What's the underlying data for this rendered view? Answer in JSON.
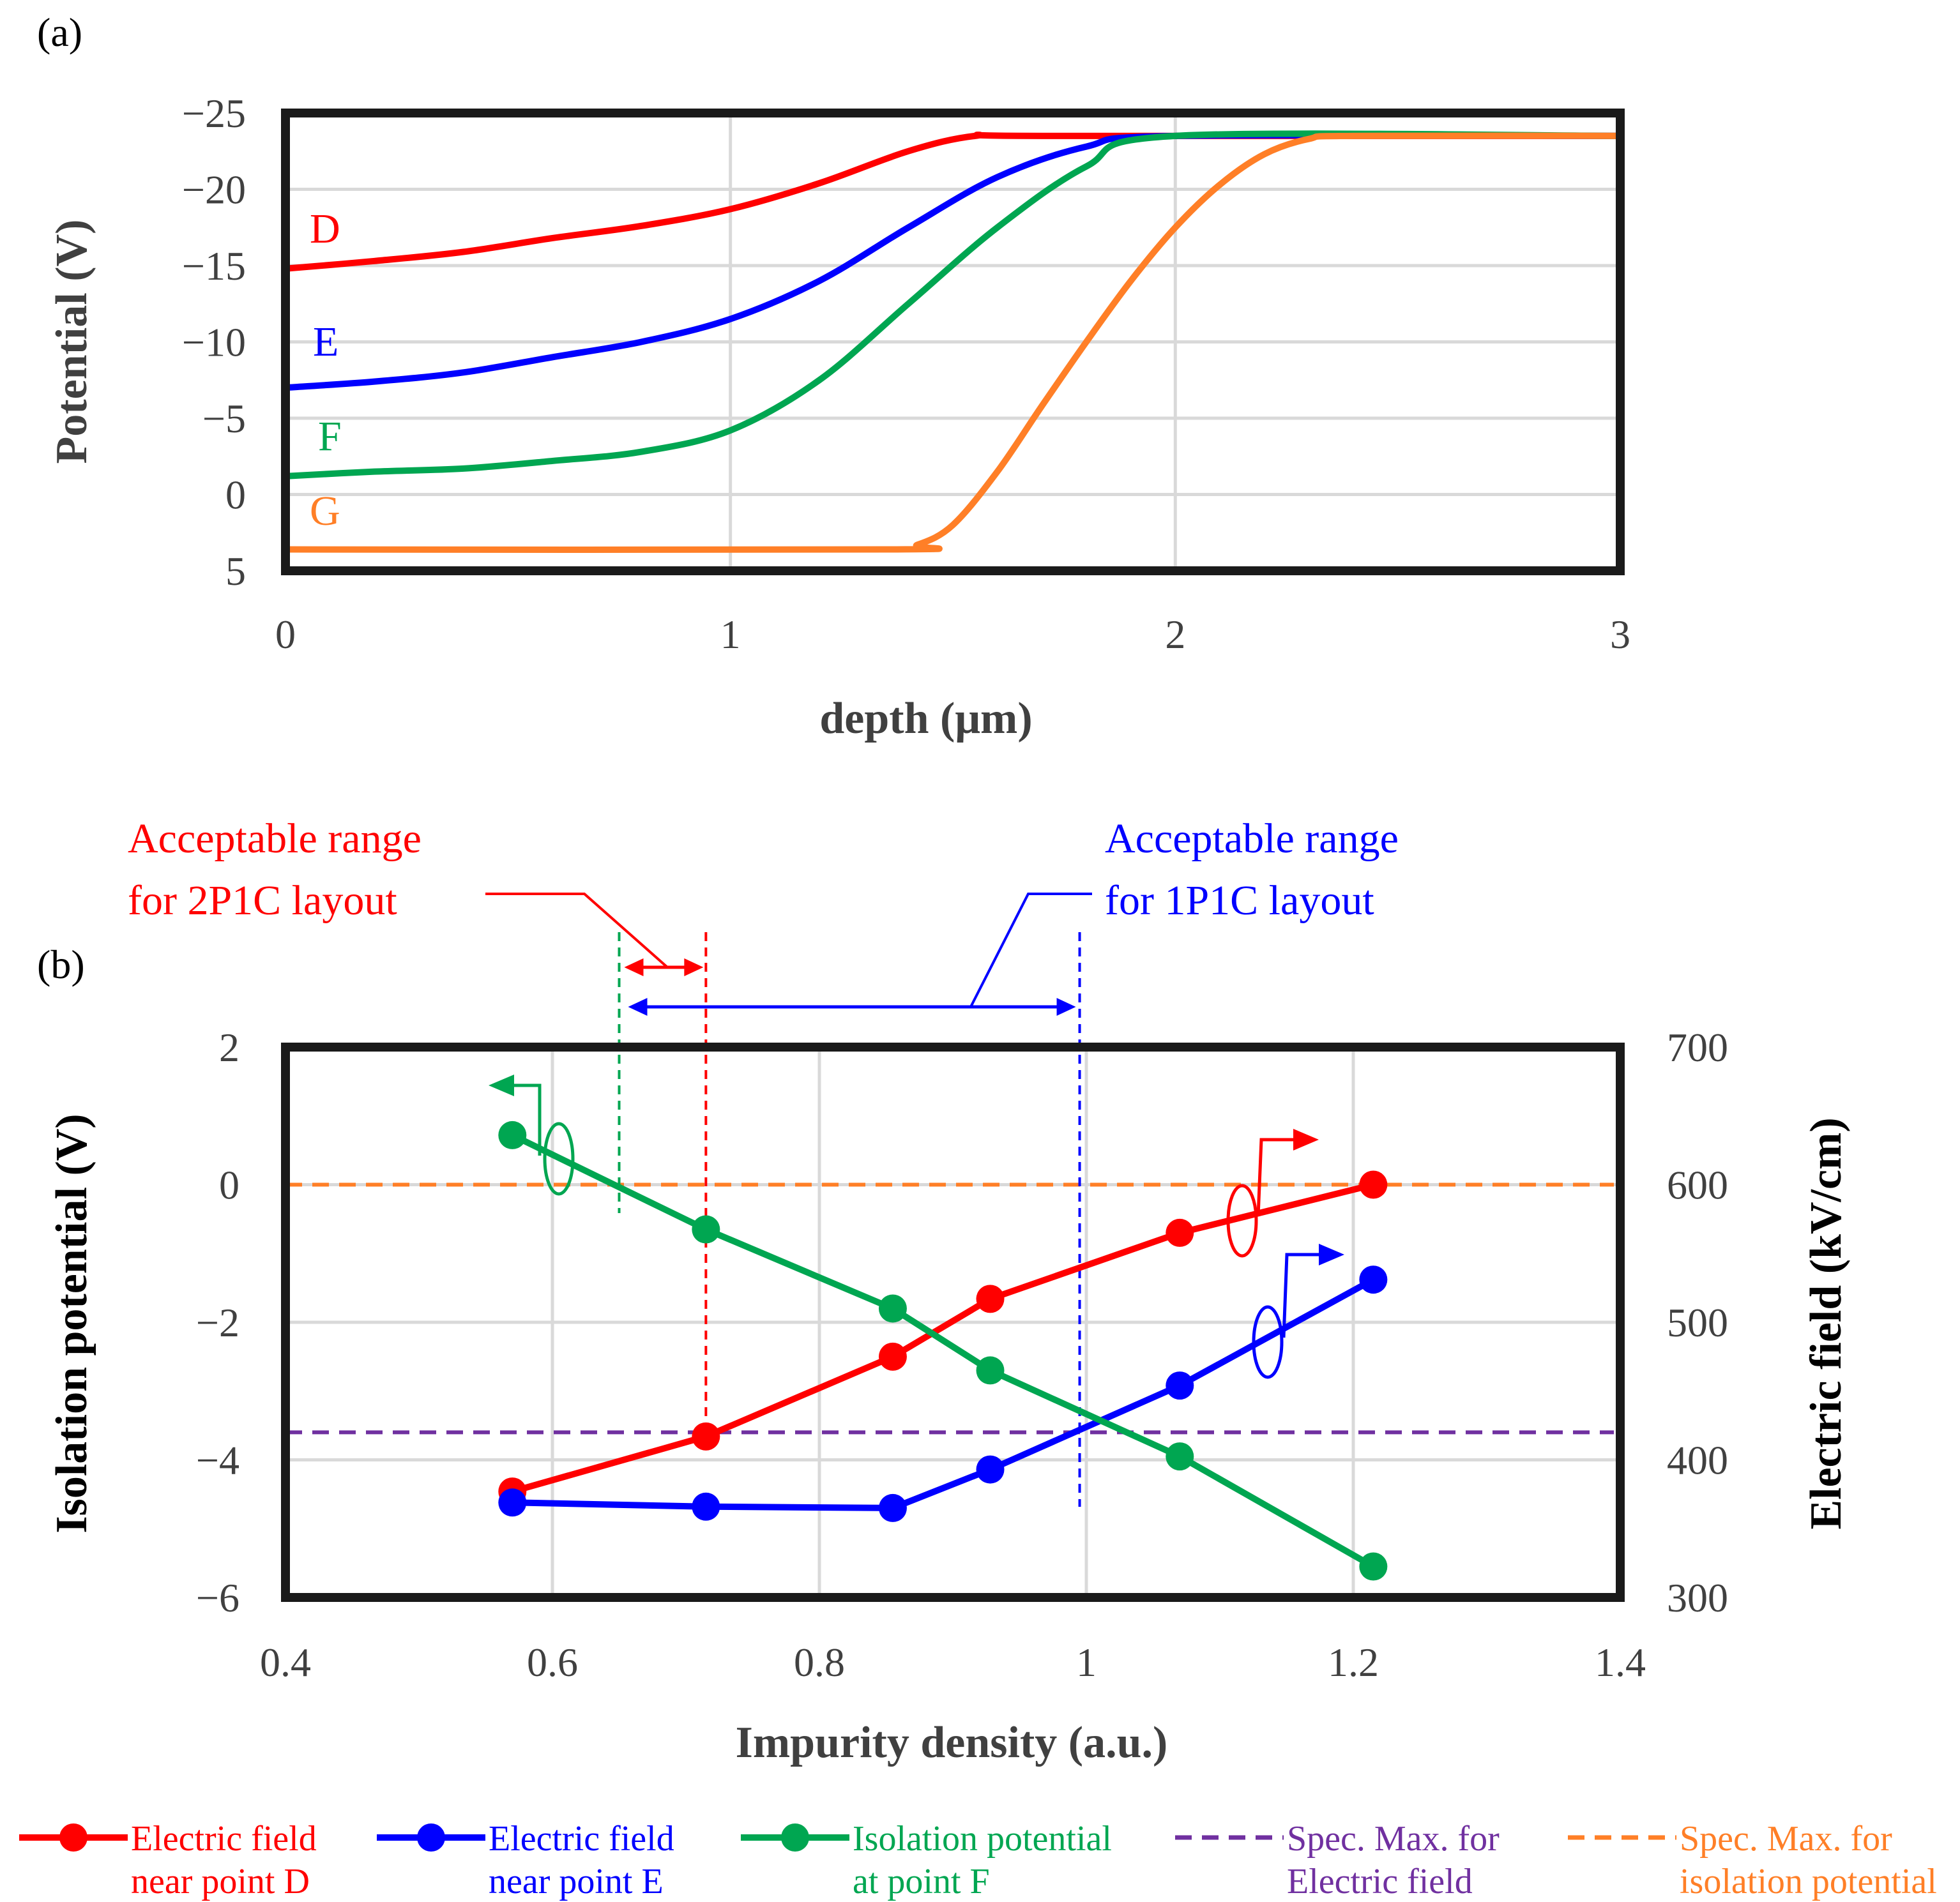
{
  "colors": {
    "red": "#ff0000",
    "blue": "#0000ff",
    "green": "#00a651",
    "orange": "#ff7f27",
    "purple": "#7030a0",
    "frame": "#1a1a1a",
    "grid": "#d9d9d9",
    "label": "#404040"
  },
  "panel_a": {
    "label": "(a)",
    "curve_labels": {
      "D": "D",
      "E": "E",
      "F": "F",
      "G": "G"
    }
  },
  "panel_b": {
    "label": "(b)",
    "annotation_2p1c": [
      "Acceptable range",
      "for 2P1C layout"
    ],
    "annotation_1p1c": [
      "Acceptable range",
      "for 1P1C layout"
    ],
    "marker_2p1c_left_x": 0.65,
    "marker_2p1c_right_x": 0.715,
    "marker_1p1c_right_x": 0.995
  },
  "legend": [
    {
      "lines": [
        "Electric field",
        "near point D"
      ],
      "color": "red",
      "style": "line-marker"
    },
    {
      "lines": [
        "Electric field",
        "near point E"
      ],
      "color": "blue",
      "style": "line-marker"
    },
    {
      "lines": [
        "Isolation potential",
        "at point F"
      ],
      "color": "green",
      "style": "line-marker"
    },
    {
      "lines": [
        "Spec. Max. for",
        "Electric field"
      ],
      "color": "purple",
      "style": "dashed"
    },
    {
      "lines": [
        "Spec. Max. for",
        "isolation potential"
      ],
      "color": "orange",
      "style": "dashed"
    }
  ],
  "chart_data": [
    {
      "type": "line",
      "title": "",
      "xlabel": "depth (μm)",
      "ylabel": "Potential (V)",
      "xlim": [
        0,
        3
      ],
      "ylim": [
        5,
        -25
      ],
      "xticks": [
        0,
        1,
        2,
        3
      ],
      "xtick_labels": [
        "0",
        "1",
        "2",
        "3"
      ],
      "yticks": [
        -25,
        -20,
        -15,
        -10,
        -5,
        0,
        5
      ],
      "ytick_labels": [
        "−25",
        "−20",
        "−15",
        "−10",
        "−5",
        "0",
        "5"
      ],
      "grid": true,
      "series": [
        {
          "name": "D",
          "color": "red",
          "x": [
            0,
            0.2,
            0.4,
            0.6,
            0.8,
            1.0,
            1.2,
            1.4,
            1.55,
            1.7,
            3.0
          ],
          "y": [
            -14.8,
            -15.3,
            -15.9,
            -16.8,
            -17.6,
            -18.7,
            -20.4,
            -22.5,
            -23.5,
            -23.5,
            -23.5
          ]
        },
        {
          "name": "E",
          "color": "blue",
          "x": [
            0,
            0.2,
            0.4,
            0.6,
            0.8,
            1.0,
            1.2,
            1.4,
            1.6,
            1.8,
            2.0,
            3.0
          ],
          "y": [
            -7.0,
            -7.4,
            -8.0,
            -9.0,
            -10.0,
            -11.5,
            -14.0,
            -17.5,
            -20.8,
            -22.8,
            -23.5,
            -23.5
          ]
        },
        {
          "name": "F",
          "color": "green",
          "x": [
            0,
            0.2,
            0.4,
            0.6,
            0.8,
            1.0,
            1.2,
            1.4,
            1.6,
            1.8,
            2.0,
            3.0
          ],
          "y": [
            -1.2,
            -1.5,
            -1.7,
            -2.2,
            -2.8,
            -4.2,
            -7.5,
            -12.5,
            -17.5,
            -21.5,
            -23.5,
            -23.5
          ]
        },
        {
          "name": "G",
          "color": "orange",
          "x": [
            0,
            1.35,
            1.42,
            1.5,
            1.6,
            1.7,
            1.8,
            1.9,
            2.0,
            2.1,
            2.2,
            2.3,
            2.4,
            3.0
          ],
          "y": [
            3.6,
            3.6,
            3.3,
            2.0,
            -1.5,
            -5.8,
            -10.0,
            -14.0,
            -17.5,
            -20.3,
            -22.3,
            -23.3,
            -23.5,
            -23.5
          ]
        }
      ]
    },
    {
      "type": "line",
      "title": "",
      "xlabel": "Impurity  density (a.u.)",
      "ylabel": "Isolation potential (V)",
      "y2label": "Electric field  (kV/cm)",
      "xlim": [
        0.4,
        1.4
      ],
      "ylim": [
        -6,
        2
      ],
      "y2lim": [
        300,
        700
      ],
      "xticks": [
        0.4,
        0.6,
        0.8,
        1.0,
        1.2,
        1.4
      ],
      "xtick_labels": [
        "0.4",
        "0.6",
        "0.8",
        "1",
        "1.2",
        "1.4"
      ],
      "yticks": [
        -6,
        -4,
        -2,
        0,
        2
      ],
      "ytick_labels": [
        "−6",
        "−4",
        "−2",
        "0",
        "2"
      ],
      "y2ticks": [
        300,
        400,
        500,
        600,
        700
      ],
      "y2tick_labels": [
        "300",
        "400",
        "500",
        "600",
        "700"
      ],
      "grid": true,
      "series": [
        {
          "name": "Electric field near point D",
          "axis": "right",
          "color": "red",
          "marker": "circle",
          "x": [
            0.57,
            0.715,
            0.855,
            0.928,
            1.07,
            1.215
          ],
          "y": [
            377,
            417,
            475,
            517,
            565,
            600
          ]
        },
        {
          "name": "Electric field near point E",
          "axis": "right",
          "color": "blue",
          "marker": "circle",
          "x": [
            0.57,
            0.715,
            0.855,
            0.928,
            1.07,
            1.215
          ],
          "y": [
            369,
            366,
            365,
            393,
            454,
            531
          ]
        },
        {
          "name": "Isolation potential at point F",
          "axis": "left",
          "color": "green",
          "marker": "circle",
          "x": [
            0.57,
            0.715,
            0.855,
            0.928,
            1.07,
            1.215
          ],
          "y": [
            0.72,
            -0.65,
            -1.8,
            -2.7,
            -3.95,
            -5.55
          ]
        },
        {
          "name": "Spec. Max. for Electric field",
          "axis": "right",
          "color": "purple",
          "style": "dashed",
          "x": [
            0.4,
            1.4
          ],
          "y": [
            420,
            420
          ]
        },
        {
          "name": "Spec. Max. for isolation potential",
          "axis": "left",
          "color": "orange",
          "style": "dashed",
          "x": [
            0.4,
            1.4
          ],
          "y": [
            0,
            0
          ]
        }
      ]
    }
  ]
}
